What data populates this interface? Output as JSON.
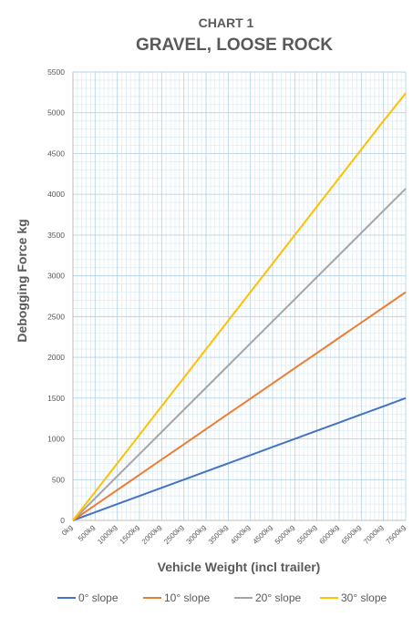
{
  "chart_data": {
    "type": "line",
    "title": "CHART 1",
    "subtitle": "GRAVEL, LOOSE ROCK",
    "xlabel": "Vehicle Weight (incl trailer)",
    "ylabel": "Debogging Force kg",
    "x": [
      0,
      500,
      1000,
      1500,
      2000,
      2500,
      3000,
      3500,
      4000,
      4500,
      5000,
      5500,
      6000,
      6500,
      7000,
      7500
    ],
    "x_tick_labels": [
      "0kg",
      "500kg",
      "1000kg",
      "1500kg",
      "2000kg",
      "2500kg",
      "3000kg",
      "3500kg",
      "4000kg",
      "4500kg",
      "5000kg",
      "5500kg",
      "6000kg",
      "6500kg",
      "7000kg",
      "7500kg"
    ],
    "ylim": [
      0,
      5500
    ],
    "y_ticks": [
      0,
      500,
      1000,
      1500,
      2000,
      2500,
      3000,
      3500,
      4000,
      4500,
      5000,
      5500
    ],
    "y_tick_labels": [
      "0",
      "500",
      "1000",
      "1500",
      "2000",
      "2500",
      "3000",
      "3500",
      "4000",
      "4500",
      "5000",
      "5500"
    ],
    "grid": true,
    "legend_position": "bottom",
    "series": [
      {
        "name": "0° slope",
        "color": "#4472c4",
        "values": [
          0,
          100,
          200,
          300,
          400,
          500,
          600,
          700,
          800,
          900,
          1000,
          1100,
          1200,
          1300,
          1400,
          1500
        ]
      },
      {
        "name": "10° slope",
        "color": "#ed7d31",
        "values": [
          0,
          187,
          373,
          560,
          747,
          933,
          1120,
          1307,
          1493,
          1680,
          1867,
          2053,
          2240,
          2427,
          2613,
          2800
        ]
      },
      {
        "name": "20° slope",
        "color": "#a5a5a5",
        "values": [
          0,
          271,
          543,
          814,
          1085,
          1357,
          1628,
          1899,
          2171,
          2442,
          2713,
          2985,
          3256,
          3527,
          3799,
          4070
        ]
      },
      {
        "name": "30° slope",
        "color": "#ffc000",
        "values": [
          0,
          350,
          700,
          1050,
          1400,
          1750,
          2100,
          2450,
          2800,
          3150,
          3500,
          3850,
          4200,
          4550,
          4900,
          5240
        ]
      }
    ]
  }
}
